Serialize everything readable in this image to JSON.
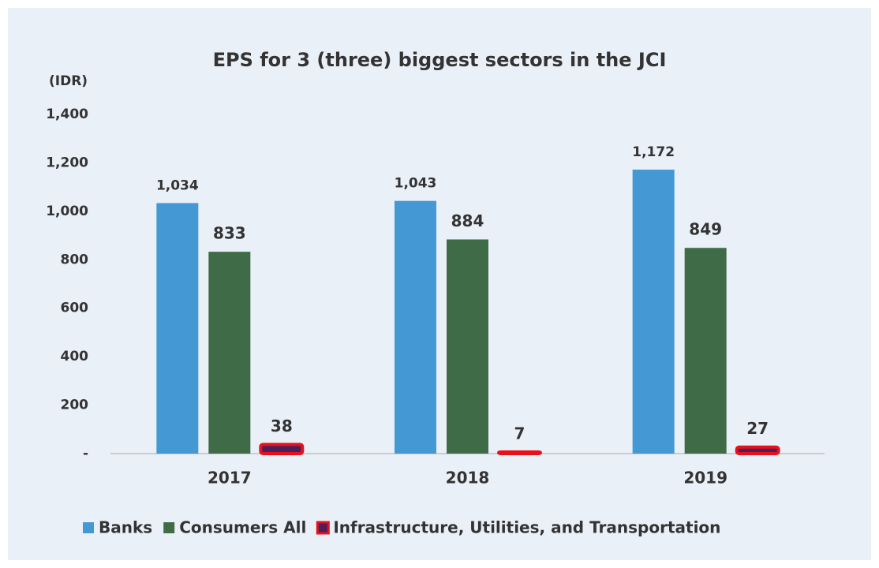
{
  "chart_data": {
    "type": "bar",
    "title": "EPS for 3 (three) biggest sectors in the JCI",
    "ylabel": "(IDR)",
    "categories": [
      "2017",
      "2018",
      "2019"
    ],
    "series": [
      {
        "name": "Banks",
        "color": "#4499d4",
        "values": [
          1034,
          1043,
          1172
        ],
        "value_labels": [
          "1,034",
          "1,043",
          "1,172"
        ]
      },
      {
        "name": "Consumers All",
        "color": "#3f6b46",
        "values": [
          833,
          884,
          849
        ]
      },
      {
        "name": "Infrastructure, Utilities, and Transportation",
        "color": "#4b1f5a",
        "edgecolor": "#e8101a",
        "values": [
          38,
          7,
          27
        ]
      }
    ],
    "ylim": [
      0,
      1400
    ],
    "yticks": [
      {
        "value": 0,
        "label": "-"
      },
      200,
      400,
      600,
      800,
      {
        "value": 1000,
        "label": "1,000"
      },
      {
        "value": 1200,
        "label": "1,200"
      },
      {
        "value": 1400,
        "label": "1,400"
      }
    ],
    "grid": false,
    "legend": "bottom"
  }
}
